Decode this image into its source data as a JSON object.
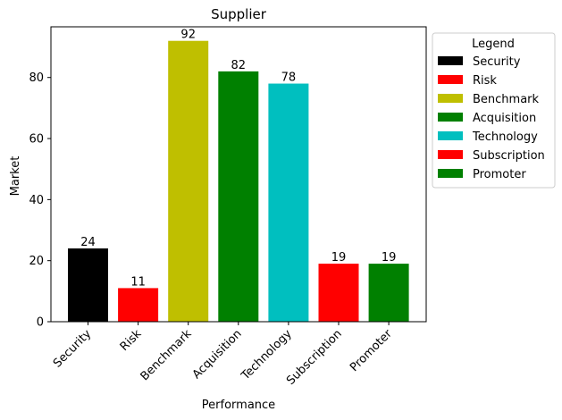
{
  "chart_data": {
    "type": "bar",
    "title": "Supplier",
    "xlabel": "Performance",
    "ylabel": "Market",
    "categories": [
      "Security",
      "Risk",
      "Benchmark",
      "Acquisition",
      "Technology",
      "Subscription",
      "Promoter"
    ],
    "values": [
      24,
      11,
      92,
      82,
      78,
      19,
      19
    ],
    "colors": [
      "#000000",
      "#ff0000",
      "#bfbf00",
      "#008000",
      "#00bfbf",
      "#ff0000",
      "#008000"
    ],
    "ylim": [
      0,
      96.6
    ],
    "yticks": [
      0,
      20,
      40,
      60,
      80
    ],
    "grid": false,
    "legend": {
      "title": "Legend",
      "placement": "outside-top-right",
      "entries": [
        "Security",
        "Risk",
        "Benchmark",
        "Acquisition",
        "Technology",
        "Subscription",
        "Promoter"
      ]
    }
  }
}
